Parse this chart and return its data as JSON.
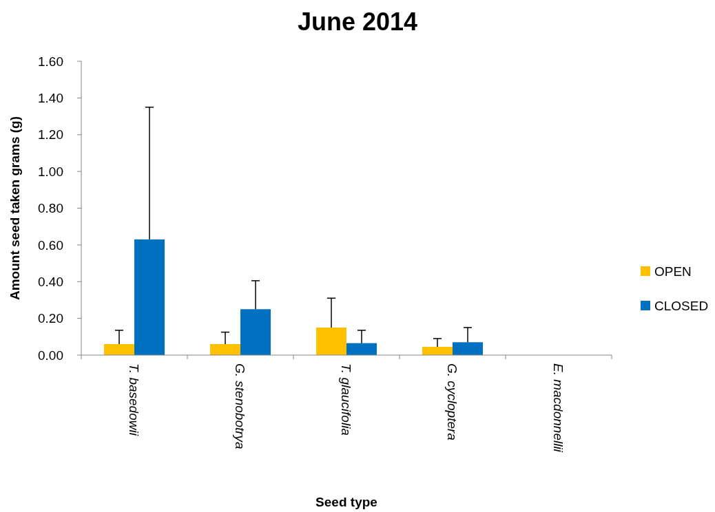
{
  "chart_data": {
    "type": "bar",
    "title": "June 2014",
    "xlabel": "Seed type",
    "ylabel": "Amount seed taken grams (g)",
    "categories": [
      "T. basedowii",
      "G. stenobotrya",
      "T. glaucifolia",
      "G. cycloptera",
      "E. macdonnellii"
    ],
    "series": [
      {
        "name": "OPEN",
        "color": "#ffc000",
        "values": [
          0.06,
          0.06,
          0.15,
          0.045,
          0
        ],
        "errors": [
          [
            0.06,
            0.135
          ],
          [
            0.06,
            0.125
          ],
          [
            0.15,
            0.31
          ],
          [
            0.045,
            0.09
          ],
          null
        ]
      },
      {
        "name": "CLOSED",
        "color": "#0070c0",
        "values": [
          0.63,
          0.25,
          0.065,
          0.07,
          0
        ],
        "errors": [
          [
            0.63,
            1.35
          ],
          [
            0.25,
            0.405
          ],
          [
            0.065,
            0.135
          ],
          [
            0.07,
            0.15
          ],
          null
        ]
      }
    ],
    "ylim": [
      0,
      1.6
    ],
    "yticks": [
      {
        "value": 0,
        "label": "0.00"
      },
      {
        "value": 0.2,
        "label": "0.20"
      },
      {
        "value": 0.4,
        "label": "0.40"
      },
      {
        "value": 0.6,
        "label": "0.60"
      },
      {
        "value": 0.8,
        "label": "0.80"
      },
      {
        "value": 1,
        "label": "1.00"
      },
      {
        "value": 1.2,
        "label": "1.20"
      },
      {
        "value": 1.4,
        "label": "1.40"
      },
      {
        "value": 1.6,
        "label": "1.60"
      }
    ],
    "grid": false,
    "legend": "right"
  }
}
